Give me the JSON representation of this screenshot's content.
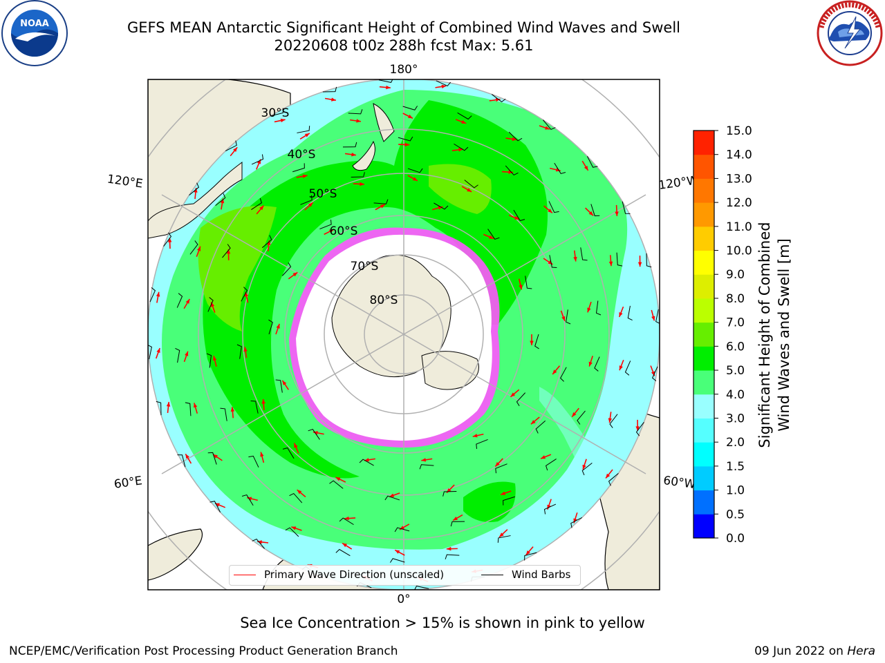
{
  "header": {
    "title_line1": "GEFS MEAN Antarctic Significant Height of Combined Wind Waves and Swell",
    "title_line2": "20220608 t00z 288h fcst   Max: 5.61"
  },
  "logos": {
    "left": {
      "name": "NOAA",
      "ring_text": "NATIONAL OCEANIC AND ATMOSPHERIC ADMINISTRATION · U.S. DEPARTMENT OF COMMERCE"
    },
    "right": {
      "name": "NATIONAL WEATHER SERVICE"
    }
  },
  "map": {
    "projection": "south-polar-stereographic",
    "longitude_labels": {
      "top": "180°",
      "upper_left": "120°E",
      "upper_right": "120°W",
      "lower_left": "60°E",
      "lower_right": "60°W",
      "bottom": "0°"
    },
    "latitude_labels": [
      "30°S",
      "40°S",
      "50°S",
      "60°S",
      "70°S",
      "80°S"
    ],
    "legend": {
      "wave_direction": "Primary Wave Direction (unscaled)",
      "wind_barbs": "Wind Barbs",
      "wave_color": "#ff0000",
      "barb_color": "#000000"
    }
  },
  "colorbar": {
    "title_line1": "Significant Height of Combined",
    "title_line2": "Wind Waves and Swell [m]",
    "ticks": [
      "0.0",
      "0.5",
      "1.0",
      "1.5",
      "2.0",
      "3.0",
      "4.0",
      "5.0",
      "6.0",
      "7.0",
      "8.0",
      "9.0",
      "10.0",
      "11.0",
      "12.0",
      "13.0",
      "14.0",
      "15.0"
    ],
    "colors": [
      "#0000ff",
      "#0070ff",
      "#00ccff",
      "#00ffff",
      "#55ffff",
      "#99ffff",
      "#49ff79",
      "#00ee00",
      "#66ee00",
      "#bbff00",
      "#ddee00",
      "#ffff00",
      "#ffcc00",
      "#ff9900",
      "#ff7700",
      "#ff5500",
      "#ff2200"
    ]
  },
  "footer": {
    "note": "Sea Ice Concentration > 15% is shown in pink to yellow",
    "left": "NCEP/EMC/Verification Post Processing Product Generation Branch",
    "right_date": "09 Jun 2022 on ",
    "right_host": "Hera"
  }
}
